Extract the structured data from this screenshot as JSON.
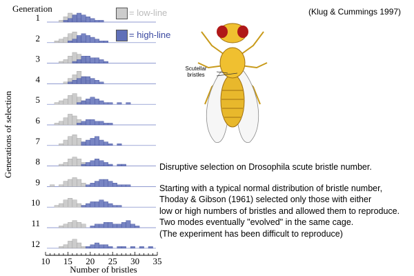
{
  "citation": "(Klug & Cummings 1997)",
  "legend": {
    "low": {
      "label": "= low-line",
      "color": "#cccccc",
      "text_color": "#bbbbbb"
    },
    "high": {
      "label": "= high-line",
      "color": "#6070b8",
      "text_color": "#3a48a0"
    }
  },
  "figure": {
    "scutellar_label_line1": "Scutellar",
    "scutellar_label_line2": "bristles"
  },
  "description": {
    "line1": "Disruptive selection on Drosophila scute bristle number.",
    "line2": "Starting with a typical normal distribution of bristle number,",
    "line3": "Thoday & Gibson (1961) selected only those with either",
    "line4": "low or high numbers of bristles and allowed them to reproduce.",
    "line5": "Two modes eventually \"evolved\" in the same cage.",
    "line6": "(The experiment has been difficult to reproduce)"
  },
  "chart_data": {
    "type": "bar",
    "title": "",
    "generation_header": "Generation",
    "xlabel": "Number of bristles",
    "ylabel": "Generations of selection",
    "xlim": [
      10,
      35
    ],
    "xticks": [
      10,
      15,
      20,
      25,
      30,
      35
    ],
    "series_names": [
      "low-line",
      "high-line"
    ],
    "generations": [
      {
        "label": "1",
        "low": [
          [
            13,
            1
          ],
          [
            14,
            3
          ],
          [
            15,
            5
          ],
          [
            16,
            4
          ],
          [
            17,
            2
          ],
          [
            18,
            1
          ]
        ],
        "high": [
          [
            14,
            1
          ],
          [
            15,
            2
          ],
          [
            16,
            4
          ],
          [
            17,
            5
          ],
          [
            18,
            4
          ],
          [
            19,
            3
          ],
          [
            20,
            2
          ],
          [
            21,
            1
          ],
          [
            22,
            1
          ]
        ]
      },
      {
        "label": "2",
        "low": [
          [
            12,
            1
          ],
          [
            13,
            2
          ],
          [
            14,
            3
          ],
          [
            15,
            5
          ],
          [
            16,
            6
          ],
          [
            17,
            3
          ],
          [
            18,
            1
          ]
        ],
        "high": [
          [
            15,
            1
          ],
          [
            16,
            2
          ],
          [
            17,
            4
          ],
          [
            18,
            5
          ],
          [
            19,
            4
          ],
          [
            20,
            3
          ],
          [
            21,
            2
          ],
          [
            22,
            1
          ],
          [
            23,
            1
          ]
        ]
      },
      {
        "label": "3",
        "low": [
          [
            13,
            1
          ],
          [
            14,
            2
          ],
          [
            15,
            4
          ],
          [
            16,
            6
          ],
          [
            17,
            5
          ],
          [
            18,
            3
          ],
          [
            19,
            1
          ]
        ],
        "high": [
          [
            16,
            1
          ],
          [
            17,
            2
          ],
          [
            18,
            4
          ],
          [
            19,
            4
          ],
          [
            20,
            3
          ],
          [
            21,
            3
          ],
          [
            22,
            2
          ],
          [
            23,
            1
          ]
        ]
      },
      {
        "label": "4",
        "low": [
          [
            14,
            1
          ],
          [
            15,
            3
          ],
          [
            16,
            5
          ],
          [
            17,
            7
          ],
          [
            18,
            4
          ],
          [
            19,
            2
          ]
        ],
        "high": [
          [
            15,
            1
          ],
          [
            16,
            2
          ],
          [
            17,
            3
          ],
          [
            18,
            4
          ],
          [
            19,
            4
          ],
          [
            20,
            3
          ],
          [
            21,
            2
          ],
          [
            22,
            1
          ]
        ]
      },
      {
        "label": "5",
        "low": [
          [
            12,
            1
          ],
          [
            13,
            2
          ],
          [
            14,
            3
          ],
          [
            15,
            5
          ],
          [
            16,
            6
          ],
          [
            17,
            4
          ],
          [
            18,
            2
          ],
          [
            19,
            1
          ]
        ],
        "high": [
          [
            17,
            1
          ],
          [
            18,
            2
          ],
          [
            19,
            3
          ],
          [
            20,
            4
          ],
          [
            21,
            3
          ],
          [
            22,
            2
          ],
          [
            23,
            1
          ],
          [
            24,
            1
          ],
          [
            26,
            1
          ],
          [
            28,
            1
          ]
        ]
      },
      {
        "label": "6",
        "low": [
          [
            12,
            1
          ],
          [
            13,
            2
          ],
          [
            14,
            4
          ],
          [
            15,
            6
          ],
          [
            16,
            5
          ],
          [
            17,
            3
          ],
          [
            18,
            1
          ]
        ],
        "high": [
          [
            17,
            1
          ],
          [
            18,
            2
          ],
          [
            19,
            3
          ],
          [
            20,
            3
          ],
          [
            21,
            2
          ],
          [
            22,
            2
          ],
          [
            23,
            1
          ],
          [
            24,
            1
          ]
        ]
      },
      {
        "label": "7",
        "low": [
          [
            13,
            1
          ],
          [
            14,
            3
          ],
          [
            15,
            5
          ],
          [
            16,
            6
          ],
          [
            17,
            4
          ],
          [
            18,
            2
          ]
        ],
        "high": [
          [
            18,
            2
          ],
          [
            19,
            3
          ],
          [
            20,
            4
          ],
          [
            21,
            5
          ],
          [
            22,
            3
          ],
          [
            23,
            2
          ],
          [
            24,
            1
          ],
          [
            26,
            1
          ]
        ]
      },
      {
        "label": "8",
        "low": [
          [
            13,
            1
          ],
          [
            14,
            2
          ],
          [
            15,
            4
          ],
          [
            16,
            5
          ],
          [
            17,
            4
          ],
          [
            18,
            2
          ]
        ],
        "high": [
          [
            18,
            1
          ],
          [
            19,
            2
          ],
          [
            20,
            3
          ],
          [
            21,
            4
          ],
          [
            22,
            3
          ],
          [
            23,
            2
          ],
          [
            24,
            1
          ],
          [
            26,
            1
          ],
          [
            27,
            1
          ]
        ]
      },
      {
        "label": "9",
        "low": [
          [
            11,
            1
          ],
          [
            13,
            1
          ],
          [
            14,
            3
          ],
          [
            15,
            4
          ],
          [
            16,
            5
          ],
          [
            17,
            4
          ],
          [
            18,
            2
          ]
        ],
        "high": [
          [
            19,
            1
          ],
          [
            20,
            2
          ],
          [
            21,
            3
          ],
          [
            22,
            4
          ],
          [
            23,
            4
          ],
          [
            24,
            3
          ],
          [
            25,
            2
          ],
          [
            26,
            1
          ],
          [
            27,
            1
          ],
          [
            28,
            1
          ]
        ]
      },
      {
        "label": "10",
        "low": [
          [
            12,
            1
          ],
          [
            13,
            2
          ],
          [
            14,
            4
          ],
          [
            15,
            5
          ],
          [
            16,
            4
          ],
          [
            17,
            2
          ],
          [
            18,
            1
          ]
        ],
        "high": [
          [
            18,
            1
          ],
          [
            19,
            2
          ],
          [
            20,
            3
          ],
          [
            21,
            3
          ],
          [
            22,
            4
          ],
          [
            23,
            3
          ],
          [
            24,
            2
          ],
          [
            25,
            1
          ],
          [
            26,
            1
          ]
        ]
      },
      {
        "label": "11",
        "low": [
          [
            13,
            1
          ],
          [
            14,
            2
          ],
          [
            15,
            3
          ],
          [
            16,
            4
          ],
          [
            17,
            3
          ],
          [
            18,
            2
          ]
        ],
        "high": [
          [
            20,
            1
          ],
          [
            21,
            2
          ],
          [
            22,
            2
          ],
          [
            23,
            3
          ],
          [
            24,
            3
          ],
          [
            25,
            2
          ],
          [
            26,
            2
          ],
          [
            27,
            3
          ],
          [
            28,
            4
          ],
          [
            29,
            2
          ],
          [
            30,
            1
          ]
        ]
      },
      {
        "label": "12",
        "low": [
          [
            13,
            1
          ],
          [
            14,
            2
          ],
          [
            15,
            4
          ],
          [
            16,
            5
          ],
          [
            17,
            3
          ],
          [
            18,
            1
          ]
        ],
        "high": [
          [
            19,
            1
          ],
          [
            20,
            2
          ],
          [
            21,
            3
          ],
          [
            22,
            2
          ],
          [
            23,
            2
          ],
          [
            24,
            1
          ],
          [
            26,
            1
          ],
          [
            27,
            1
          ],
          [
            29,
            1
          ],
          [
            31,
            1
          ],
          [
            33,
            1
          ]
        ]
      }
    ]
  }
}
